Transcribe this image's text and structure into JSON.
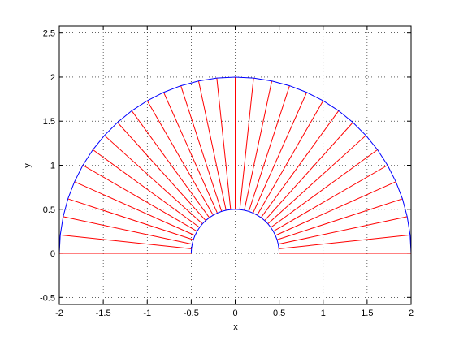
{
  "chart_data": {
    "type": "line",
    "xlabel": "x",
    "ylabel": "y",
    "xlim": [
      -2,
      2
    ],
    "xticks": [
      -2,
      -1.5,
      -1,
      -0.5,
      0,
      0.5,
      1,
      1.5,
      2
    ],
    "ylim": [
      -0.58,
      2.58
    ],
    "yticks": [
      -0.5,
      0,
      0.5,
      1,
      1.5,
      2,
      2.5
    ],
    "grid": true,
    "series": [
      {
        "color": "#ff0000",
        "x": [
          0.5,
          2,
          null,
          0.497,
          1.989,
          null,
          0.489,
          1.956,
          null,
          0.476,
          1.902,
          null,
          0.457,
          1.827,
          null,
          0.433,
          1.732,
          null,
          0.405,
          1.618,
          null,
          0.372,
          1.486,
          null,
          0.335,
          1.338,
          null,
          0.294,
          1.176,
          null,
          0.25,
          1,
          null,
          0.203,
          0.813,
          null,
          0.155,
          0.618,
          null,
          0.104,
          0.416,
          null,
          0.052,
          0.209,
          null,
          0,
          0,
          null,
          -0.052,
          -0.209,
          null,
          -0.104,
          -0.416,
          null,
          -0.155,
          -0.618,
          null,
          -0.203,
          -0.813,
          null,
          -0.25,
          -1,
          null,
          -0.294,
          -1.176,
          null,
          -0.335,
          -1.338,
          null,
          -0.372,
          -1.486,
          null,
          -0.405,
          -1.618,
          null,
          -0.433,
          -1.732,
          null,
          -0.457,
          -1.827,
          null,
          -0.476,
          -1.902,
          null,
          -0.489,
          -1.956,
          null,
          -0.497,
          -1.989,
          null,
          -0.5,
          -2
        ],
        "values": [
          0,
          0,
          null,
          0.052,
          0.209,
          null,
          0.104,
          0.416,
          null,
          0.155,
          0.618,
          null,
          0.203,
          0.813,
          null,
          0.25,
          1,
          null,
          0.294,
          1.176,
          null,
          0.335,
          1.338,
          null,
          0.372,
          1.486,
          null,
          0.405,
          1.618,
          null,
          0.433,
          1.732,
          null,
          0.457,
          1.827,
          null,
          0.476,
          1.902,
          null,
          0.489,
          1.956,
          null,
          0.497,
          1.989,
          null,
          0.5,
          2,
          null,
          0.497,
          1.989,
          null,
          0.489,
          1.956,
          null,
          0.476,
          1.902,
          null,
          0.457,
          1.827,
          null,
          0.433,
          1.732,
          null,
          0.405,
          1.618,
          null,
          0.372,
          1.486,
          null,
          0.335,
          1.338,
          null,
          0.294,
          1.176,
          null,
          0.25,
          1,
          null,
          0.203,
          0.813,
          null,
          0.155,
          0.618,
          null,
          0.104,
          0.416,
          null,
          0.052,
          0.209,
          null,
          0,
          0
        ]
      },
      {
        "color": "#0000ff",
        "x": [
          2,
          1.989,
          1.956,
          1.902,
          1.827,
          1.732,
          1.618,
          1.486,
          1.338,
          1.176,
          1,
          0.813,
          0.618,
          0.416,
          0.209,
          0,
          -0.209,
          -0.416,
          -0.618,
          -0.813,
          -1,
          -1.176,
          -1.338,
          -1.486,
          -1.618,
          -1.732,
          -1.827,
          -1.902,
          -1.956,
          -1.989,
          -2
        ],
        "values": [
          0,
          0.209,
          0.416,
          0.618,
          0.813,
          1,
          1.176,
          1.338,
          1.486,
          1.618,
          1.732,
          1.827,
          1.902,
          1.956,
          1.989,
          2,
          1.989,
          1.956,
          1.902,
          1.827,
          1.732,
          1.618,
          1.486,
          1.338,
          1.176,
          1,
          0.813,
          0.618,
          0.416,
          0.209,
          0
        ]
      },
      {
        "color": "#0000ff",
        "x": [
          0.5,
          0.497,
          0.489,
          0.476,
          0.457,
          0.433,
          0.405,
          0.372,
          0.335,
          0.294,
          0.25,
          0.203,
          0.155,
          0.104,
          0.052,
          0,
          -0.052,
          -0.104,
          -0.155,
          -0.203,
          -0.25,
          -0.294,
          -0.335,
          -0.372,
          -0.405,
          -0.433,
          -0.457,
          -0.476,
          -0.489,
          -0.497,
          -0.5
        ],
        "values": [
          0,
          0.052,
          0.104,
          0.155,
          0.203,
          0.25,
          0.294,
          0.335,
          0.372,
          0.405,
          0.433,
          0.457,
          0.476,
          0.489,
          0.497,
          0.5,
          0.497,
          0.489,
          0.476,
          0.457,
          0.433,
          0.405,
          0.372,
          0.335,
          0.294,
          0.25,
          0.203,
          0.155,
          0.104,
          0.052,
          0
        ]
      }
    ]
  }
}
